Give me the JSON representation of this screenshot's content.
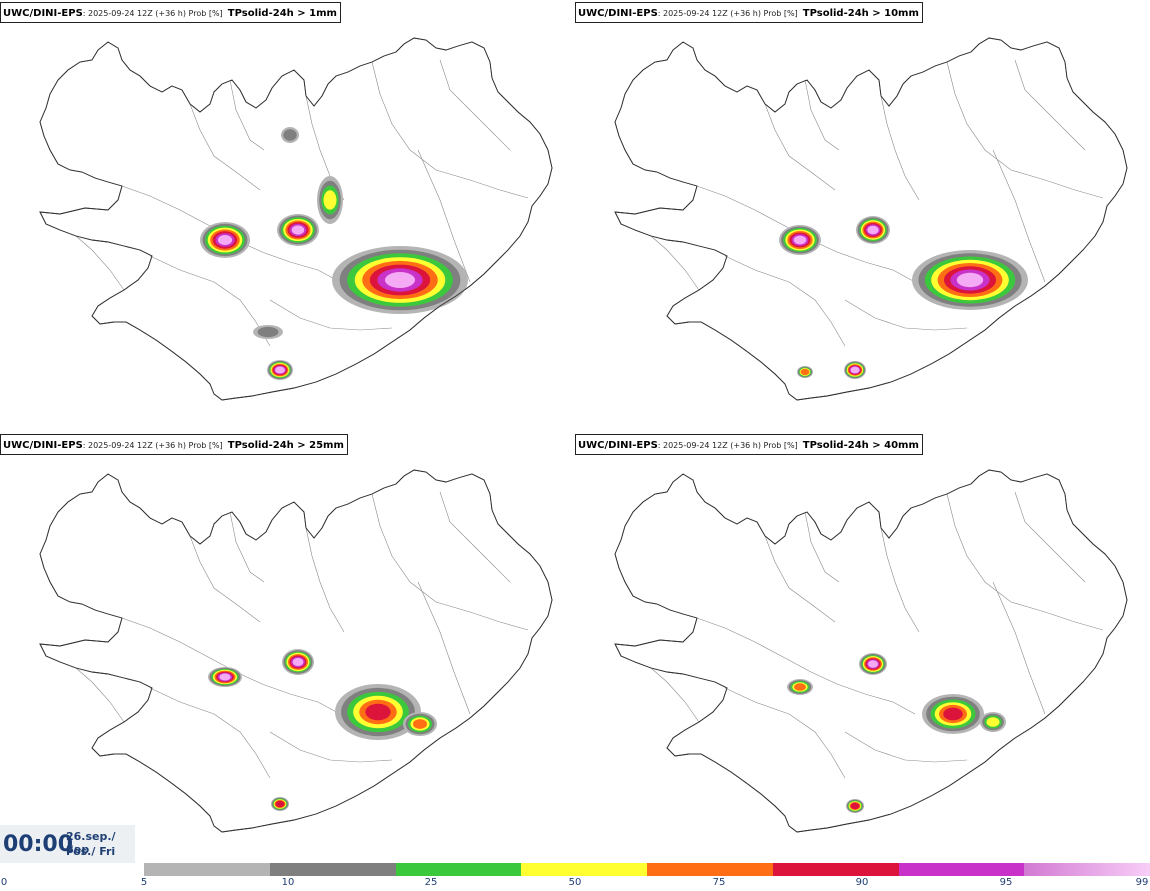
{
  "panels": [
    {
      "source": "UWC/DINI-EPS",
      "run": ": 2025-09-24 12Z (+36 h) Prob [%]",
      "variable": "TPsolid-24h > 1mm"
    },
    {
      "source": "UWC/DINI-EPS",
      "run": ": 2025-09-24 12Z (+36 h) Prob [%]",
      "variable": "TPsolid-24h > 10mm"
    },
    {
      "source": "UWC/DINI-EPS",
      "run": ": 2025-09-24 12Z (+36 h) Prob [%]",
      "variable": "TPsolid-24h > 25mm"
    },
    {
      "source": "UWC/DINI-EPS",
      "run": ": 2025-09-24 12Z (+36 h) Prob [%]",
      "variable": "TPsolid-24h > 40mm"
    }
  ],
  "time": {
    "clock": "00:00",
    "date_line": "26.sep./ Sep",
    "weekday_line": "Fös./ Fri"
  },
  "legend": {
    "ticks": [
      "0",
      "5",
      "10",
      "25",
      "50",
      "75",
      "90",
      "95",
      "99"
    ],
    "colors": [
      "#b4b4b4",
      "#7f7f7f",
      "#3cc83c",
      "#ffff32",
      "#ff6e14",
      "#dc143c",
      "#c832c8",
      "#f5aaf5"
    ]
  }
}
